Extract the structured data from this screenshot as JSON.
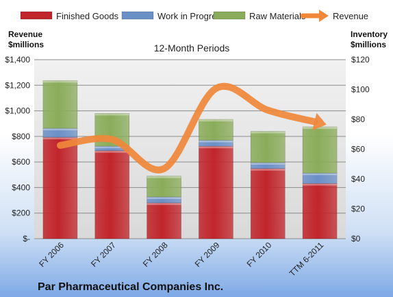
{
  "chart_data": {
    "type": "bar",
    "title": "12-Month Periods",
    "categories": [
      "FY 2006",
      "FY 2007",
      "FY 2008",
      "FY 2009",
      "FY 2010",
      "TTM 6-2011"
    ],
    "left_axis": {
      "title_lines": [
        "Revenue",
        "$millions"
      ],
      "ylim": [
        0,
        1400
      ],
      "tick_values": [
        0,
        200,
        400,
        600,
        800,
        1000,
        1200,
        1400
      ],
      "tick_labels": [
        "$-",
        "$200",
        "$400",
        "$600",
        "$800",
        "$1,000",
        "$1,200",
        "$1,400"
      ]
    },
    "right_axis": {
      "title_lines": [
        "Inventory",
        "$millions"
      ],
      "ylim": [
        0,
        120
      ],
      "tick_values": [
        0,
        20,
        40,
        60,
        80,
        100,
        120
      ],
      "tick_labels": [
        "$0",
        "$20",
        "$40",
        "$60",
        "$80",
        "$100",
        "$120"
      ]
    },
    "stacked_series": [
      {
        "name": "Finished Goods",
        "axis": "right",
        "color": "#c0252b",
        "values": [
          68,
          59,
          24,
          62,
          47,
          37
        ]
      },
      {
        "name": "Work in Progress",
        "axis": "right",
        "color": "#6b8fc7",
        "values": [
          6,
          3,
          4,
          4,
          4,
          7
        ]
      },
      {
        "name": "Raw Materials",
        "axis": "right",
        "color": "#8aac5a",
        "values": [
          32,
          22,
          14,
          14,
          21,
          31
        ]
      }
    ],
    "line_series": {
      "name": "Revenue",
      "axis": "left",
      "color": "#f0883a",
      "values": [
        730,
        776,
        548,
        1175,
        1005,
        905
      ]
    },
    "grid": true,
    "legend_position": "top",
    "footer": "Par Pharmaceutical Companies Inc."
  }
}
